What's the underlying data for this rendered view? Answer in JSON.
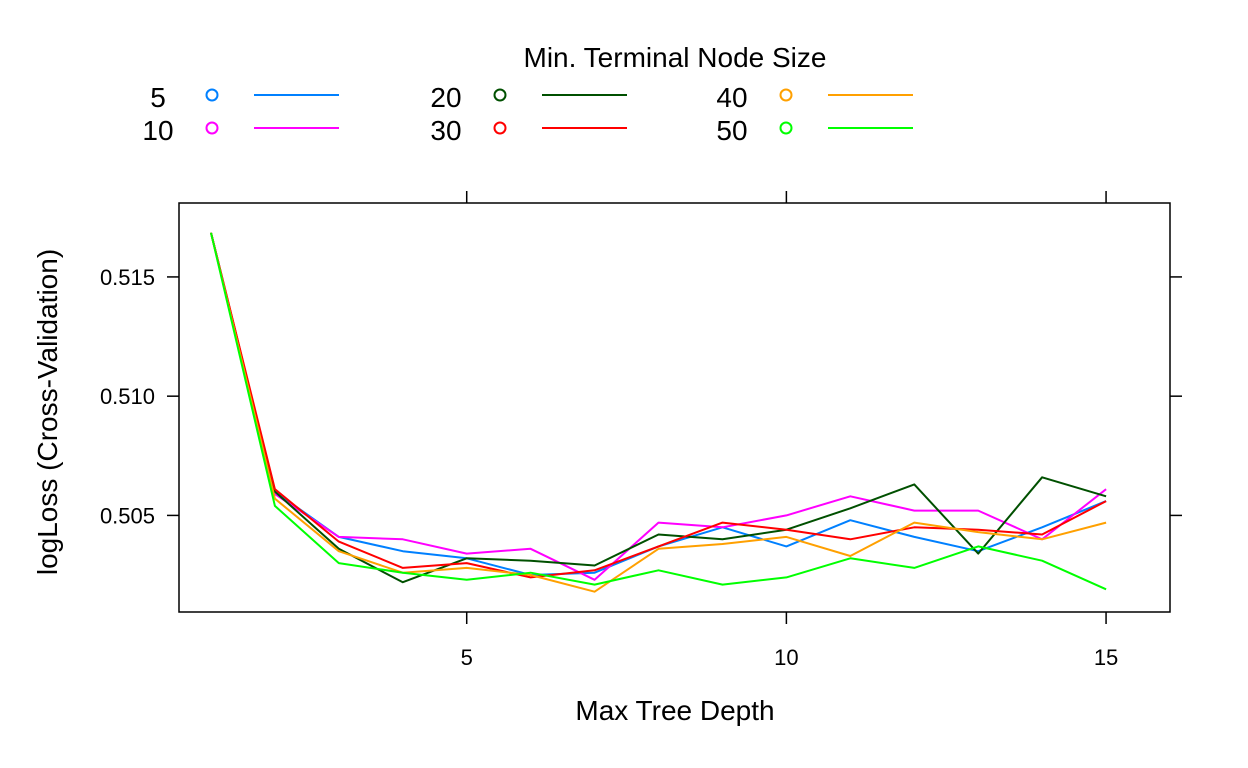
{
  "chart_data": {
    "type": "line",
    "xlabel": "Max Tree Depth",
    "ylabel": "logLoss (Cross-Validation)",
    "legend_title": "Min. Terminal Node Size",
    "legend_position": "top",
    "grid": false,
    "xlim": [
      0.5,
      16.0
    ],
    "ylim": [
      0.50095,
      0.5181
    ],
    "x_ticks": [
      5,
      10,
      15
    ],
    "x_tick_labels": [
      "5",
      "10",
      "15"
    ],
    "y_ticks": [
      0.505,
      0.51,
      0.515
    ],
    "y_tick_labels": [
      "0.505",
      "0.510",
      "0.515"
    ],
    "x": [
      1,
      2,
      3,
      4,
      5,
      6,
      7,
      8,
      9,
      10,
      11,
      12,
      13,
      14,
      15
    ],
    "series": [
      {
        "name": "5",
        "color": "#0080ff",
        "values": [
          0.51685,
          0.506,
          0.5041,
          0.5035,
          0.5032,
          0.5025,
          0.5026,
          0.5037,
          0.5045,
          0.5037,
          0.5048,
          0.5041,
          0.5035,
          0.5045,
          0.5056
        ]
      },
      {
        "name": "10",
        "color": "#ff00ff",
        "values": [
          0.51685,
          0.5059,
          0.5041,
          0.504,
          0.5034,
          0.5036,
          0.5023,
          0.5047,
          0.5045,
          0.505,
          0.5058,
          0.5052,
          0.5052,
          0.504,
          0.5061
        ]
      },
      {
        "name": "20",
        "color": "#005000",
        "values": [
          0.51685,
          0.506,
          0.5036,
          0.5022,
          0.5032,
          0.5031,
          0.5029,
          0.5042,
          0.504,
          0.5044,
          0.5053,
          0.5063,
          0.5034,
          0.5066,
          0.5058
        ]
      },
      {
        "name": "30",
        "color": "#ff0000",
        "values": [
          0.51685,
          0.5061,
          0.5039,
          0.5028,
          0.503,
          0.5024,
          0.5027,
          0.5037,
          0.5047,
          0.5044,
          0.504,
          0.5045,
          0.5044,
          0.5042,
          0.5056
        ]
      },
      {
        "name": "40",
        "color": "#ffa000",
        "values": [
          0.51685,
          0.5057,
          0.5035,
          0.5026,
          0.5028,
          0.5025,
          0.5018,
          0.5036,
          0.5038,
          0.5041,
          0.5033,
          0.5047,
          0.5043,
          0.504,
          0.5047
        ]
      },
      {
        "name": "50",
        "color": "#00ff00",
        "values": [
          0.51685,
          0.5054,
          0.503,
          0.5026,
          0.5023,
          0.5026,
          0.5021,
          0.5027,
          0.5021,
          0.5024,
          0.5032,
          0.5028,
          0.5037,
          0.5031,
          0.5019
        ]
      }
    ]
  }
}
